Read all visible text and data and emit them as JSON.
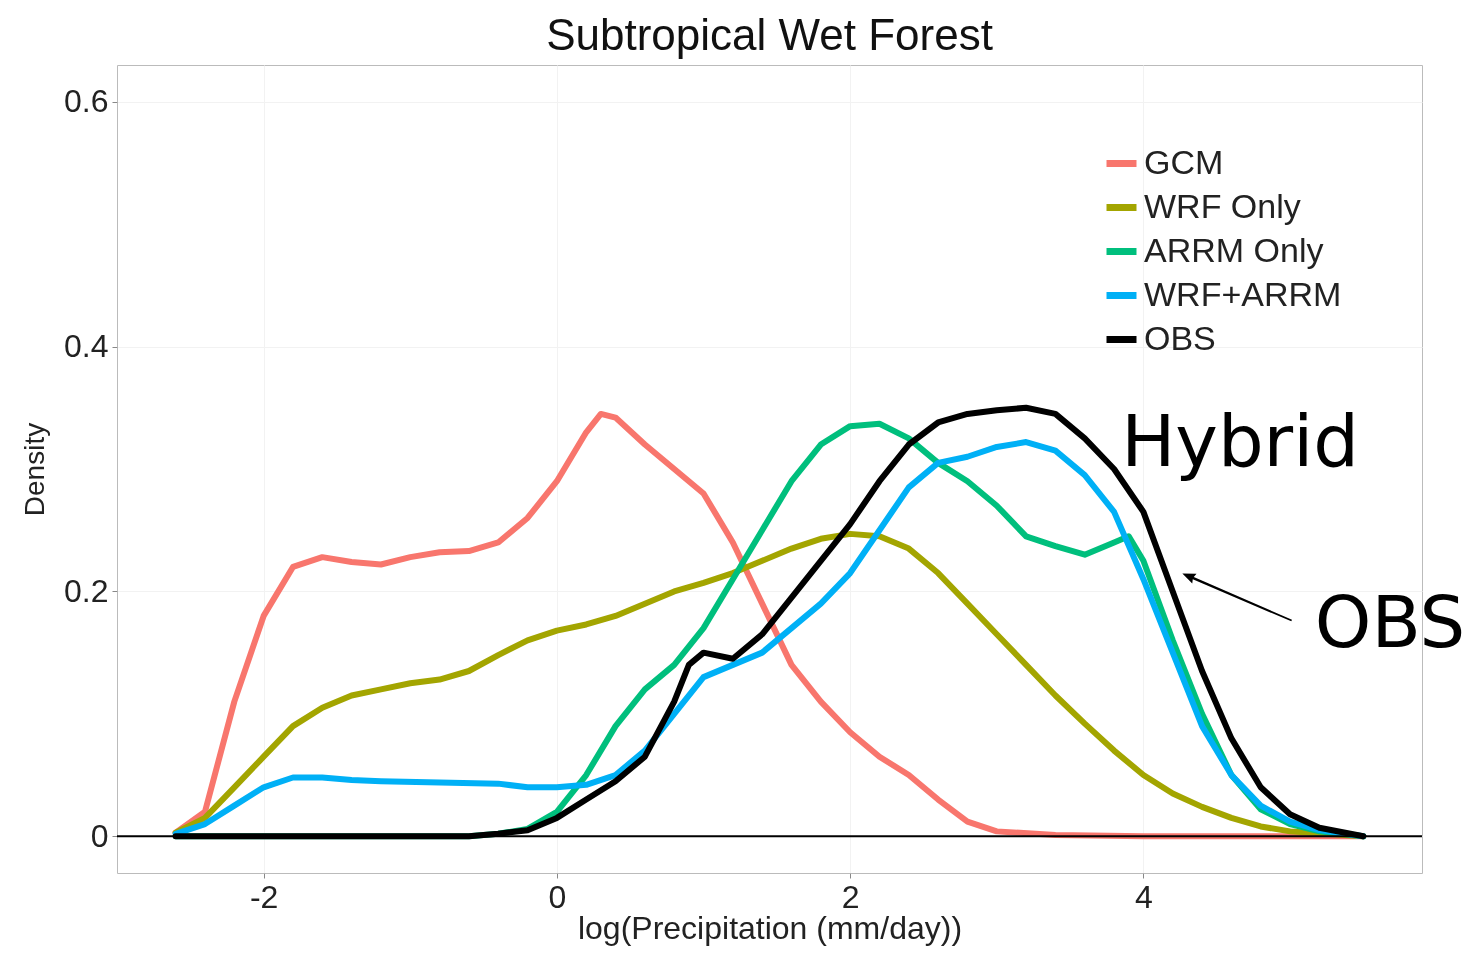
{
  "chart_data": {
    "type": "line",
    "title": "Subtropical Wet Forest",
    "xlabel": "log(Precipitation (mm/day))",
    "ylabel": "Density",
    "xlim": [
      -3,
      5.9
    ],
    "ylim": [
      -0.03,
      0.63
    ],
    "xticks": [
      -2,
      0,
      2,
      4
    ],
    "yticks": [
      0,
      0.2,
      0.4,
      0.6
    ],
    "grid": true,
    "legend": "top right",
    "ref_lines": [
      {
        "axis": "y",
        "value": 0,
        "color": "#000000"
      }
    ],
    "annotations": [
      "Hybrid",
      "OBS"
    ],
    "series": [
      {
        "name": "GCM",
        "color": "#f8766d",
        "x": [
          -2.6,
          -2.4,
          -2.2,
          -2,
          -1.8,
          -1.6,
          -1.4,
          -1.2,
          -1,
          -0.8,
          -0.6,
          -0.4,
          -0.2,
          0,
          0.2,
          0.3,
          0.4,
          0.6,
          0.8,
          1,
          1.2,
          1.4,
          1.6,
          1.8,
          2,
          2.2,
          2.4,
          2.6,
          2.8,
          3,
          3.4,
          4,
          5.5
        ],
        "values": [
          0.003,
          0.02,
          0.11,
          0.18,
          0.22,
          0.228,
          0.224,
          0.222,
          0.228,
          0.232,
          0.233,
          0.24,
          0.26,
          0.29,
          0.33,
          0.345,
          0.342,
          0.32,
          0.3,
          0.28,
          0.24,
          0.19,
          0.14,
          0.11,
          0.085,
          0.065,
          0.05,
          0.03,
          0.012,
          0.004,
          0.001,
          0,
          0
        ]
      },
      {
        "name": "WRF Only",
        "color": "#a3a500",
        "x": [
          -2.6,
          -2.4,
          -2.2,
          -2,
          -1.8,
          -1.6,
          -1.4,
          -1.2,
          -1,
          -0.8,
          -0.6,
          -0.4,
          -0.2,
          0,
          0.2,
          0.4,
          0.6,
          0.8,
          1,
          1.2,
          1.4,
          1.6,
          1.8,
          2,
          2.2,
          2.4,
          2.6,
          2.8,
          3,
          3.2,
          3.4,
          3.6,
          3.8,
          4,
          4.2,
          4.4,
          4.6,
          4.8,
          5,
          5.5
        ],
        "values": [
          0.003,
          0.015,
          0.04,
          0.065,
          0.09,
          0.105,
          0.115,
          0.12,
          0.125,
          0.128,
          0.135,
          0.148,
          0.16,
          0.168,
          0.173,
          0.18,
          0.19,
          0.2,
          0.207,
          0.215,
          0.225,
          0.235,
          0.243,
          0.247,
          0.245,
          0.235,
          0.215,
          0.19,
          0.165,
          0.14,
          0.115,
          0.092,
          0.07,
          0.05,
          0.035,
          0.024,
          0.015,
          0.008,
          0.004,
          0
        ]
      },
      {
        "name": "ARRM Only",
        "color": "#00bf7d",
        "x": [
          -2.6,
          -0.6,
          -0.4,
          -0.2,
          0,
          0.2,
          0.4,
          0.6,
          0.8,
          1,
          1.2,
          1.4,
          1.6,
          1.8,
          2,
          2.2,
          2.4,
          2.6,
          2.8,
          3,
          3.2,
          3.4,
          3.6,
          3.8,
          3.9,
          4,
          4.2,
          4.4,
          4.6,
          4.8,
          5,
          5.2,
          5.5
        ],
        "values": [
          0,
          0,
          0.002,
          0.006,
          0.02,
          0.05,
          0.09,
          0.12,
          0.14,
          0.17,
          0.21,
          0.25,
          0.29,
          0.32,
          0.335,
          0.337,
          0.325,
          0.305,
          0.29,
          0.27,
          0.245,
          0.237,
          0.23,
          0.24,
          0.245,
          0.225,
          0.16,
          0.1,
          0.05,
          0.022,
          0.01,
          0.004,
          0
        ]
      },
      {
        "name": "WRF+ARRM",
        "color": "#00b0f6",
        "x": [
          -2.6,
          -2.4,
          -2.2,
          -2,
          -1.8,
          -1.6,
          -1.4,
          -1.2,
          -0.8,
          -0.4,
          -0.2,
          0,
          0.2,
          0.4,
          0.6,
          0.8,
          1,
          1.2,
          1.4,
          1.6,
          1.8,
          2,
          2.2,
          2.4,
          2.6,
          2.8,
          3,
          3.2,
          3.4,
          3.6,
          3.8,
          4,
          4.2,
          4.4,
          4.6,
          4.8,
          5,
          5.2,
          5.5
        ],
        "values": [
          0.002,
          0.01,
          0.025,
          0.04,
          0.048,
          0.048,
          0.046,
          0.045,
          0.044,
          0.043,
          0.04,
          0.04,
          0.042,
          0.05,
          0.07,
          0.1,
          0.13,
          0.14,
          0.15,
          0.17,
          0.19,
          0.215,
          0.25,
          0.285,
          0.305,
          0.31,
          0.318,
          0.322,
          0.315,
          0.295,
          0.265,
          0.21,
          0.15,
          0.09,
          0.05,
          0.025,
          0.012,
          0.005,
          0
        ]
      },
      {
        "name": "OBS",
        "color": "#000000",
        "x": [
          -2.6,
          -0.6,
          -0.4,
          -0.2,
          0,
          0.2,
          0.4,
          0.6,
          0.8,
          0.9,
          1,
          1.2,
          1.4,
          1.6,
          1.8,
          2,
          2.2,
          2.4,
          2.6,
          2.8,
          3,
          3.2,
          3.4,
          3.6,
          3.8,
          4,
          4.2,
          4.4,
          4.6,
          4.8,
          5,
          5.2,
          5.5
        ],
        "values": [
          0,
          0,
          0.002,
          0.005,
          0.015,
          0.03,
          0.045,
          0.065,
          0.11,
          0.14,
          0.15,
          0.145,
          0.165,
          0.195,
          0.225,
          0.255,
          0.29,
          0.32,
          0.338,
          0.345,
          0.348,
          0.35,
          0.345,
          0.325,
          0.3,
          0.265,
          0.2,
          0.135,
          0.08,
          0.04,
          0.018,
          0.007,
          0
        ]
      }
    ]
  }
}
